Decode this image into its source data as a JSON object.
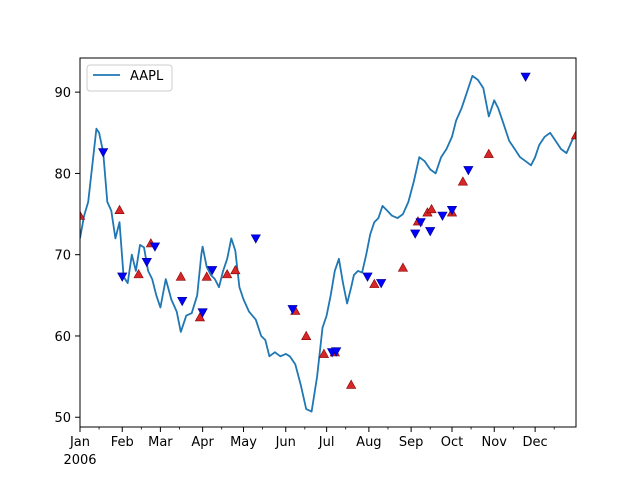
{
  "chart_data": {
    "type": "line",
    "title": "",
    "xlabel": "",
    "ylabel": "",
    "x_tick_labels": [
      "Jan",
      "Feb",
      "Mar",
      "Apr",
      "May",
      "Jun",
      "Jul",
      "Aug",
      "Sep",
      "Oct",
      "Nov",
      "Dec"
    ],
    "x_tick_sublabel": "2006",
    "y_ticks": [
      50,
      60,
      70,
      80,
      90
    ],
    "ylim": [
      48.8,
      94.2
    ],
    "xlim": [
      "2006-01-01",
      "2006-12-31"
    ],
    "legend": {
      "location": "upper-left",
      "entries": [
        "AAPL"
      ]
    },
    "grid": false,
    "colors": {
      "line": "#1f77b4",
      "up_marker": "#d62728",
      "down_marker": "#0000ff"
    },
    "series": [
      {
        "name": "AAPL",
        "x": [
          "2006-01-01",
          "2006-01-04",
          "2006-01-07",
          "2006-01-10",
          "2006-01-13",
          "2006-01-15",
          "2006-01-18",
          "2006-01-21",
          "2006-01-24",
          "2006-01-27",
          "2006-01-30",
          "2006-02-02",
          "2006-02-05",
          "2006-02-08",
          "2006-02-11",
          "2006-02-14",
          "2006-02-17",
          "2006-02-20",
          "2006-02-23",
          "2006-02-26",
          "2006-03-01",
          "2006-03-05",
          "2006-03-09",
          "2006-03-13",
          "2006-03-16",
          "2006-03-20",
          "2006-03-24",
          "2006-03-28",
          "2006-03-31",
          "2006-04-01",
          "2006-04-04",
          "2006-04-07",
          "2006-04-10",
          "2006-04-13",
          "2006-04-16",
          "2006-04-19",
          "2006-04-22",
          "2006-04-25",
          "2006-04-28",
          "2006-05-01",
          "2006-05-05",
          "2006-05-10",
          "2006-05-14",
          "2006-05-17",
          "2006-05-20",
          "2006-05-24",
          "2006-05-28",
          "2006-06-01",
          "2006-06-04",
          "2006-06-08",
          "2006-06-12",
          "2006-06-16",
          "2006-06-20",
          "2006-06-24",
          "2006-06-28",
          "2006-07-01",
          "2006-07-04",
          "2006-07-07",
          "2006-07-10",
          "2006-07-13",
          "2006-07-16",
          "2006-07-19",
          "2006-07-21",
          "2006-07-24",
          "2006-07-27",
          "2006-07-30",
          "2006-08-02",
          "2006-08-05",
          "2006-08-08",
          "2006-08-11",
          "2006-08-14",
          "2006-08-18",
          "2006-08-22",
          "2006-08-26",
          "2006-08-30",
          "2006-09-03",
          "2006-09-07",
          "2006-09-11",
          "2006-09-15",
          "2006-09-19",
          "2006-09-23",
          "2006-09-27",
          "2006-10-01",
          "2006-10-04",
          "2006-10-08",
          "2006-10-12",
          "2006-10-16",
          "2006-10-20",
          "2006-10-24",
          "2006-10-28",
          "2006-11-01",
          "2006-11-04",
          "2006-11-08",
          "2006-11-12",
          "2006-11-16",
          "2006-11-20",
          "2006-11-24",
          "2006-11-28",
          "2006-12-01",
          "2006-12-04",
          "2006-12-08",
          "2006-12-12",
          "2006-12-16",
          "2006-12-20",
          "2006-12-24",
          "2006-12-28",
          "2006-12-31"
        ],
        "values": [
          72.0,
          74.8,
          76.5,
          81.0,
          85.5,
          85.0,
          82.6,
          76.5,
          75.4,
          72.0,
          74.0,
          67.3,
          66.5,
          70.0,
          68.0,
          71.2,
          70.9,
          68.0,
          67.0,
          65.0,
          63.5,
          67.0,
          64.5,
          63.0,
          60.5,
          62.5,
          62.8,
          65.0,
          70.0,
          71.0,
          68.5,
          67.5,
          67.0,
          66.0,
          68.0,
          69.5,
          72.0,
          70.5,
          66.0,
          64.5,
          63.0,
          62.0,
          60.0,
          59.5,
          57.5,
          58.0,
          57.5,
          57.8,
          57.5,
          56.5,
          54.0,
          51.0,
          50.7,
          55.0,
          61.0,
          62.5,
          65.0,
          68.0,
          69.5,
          66.5,
          64.0,
          66.0,
          67.5,
          68.0,
          67.8,
          70.0,
          72.5,
          74.0,
          74.5,
          76.0,
          75.5,
          74.8,
          74.5,
          75.0,
          76.5,
          79.0,
          82.0,
          81.5,
          80.5,
          80.0,
          82.0,
          83.0,
          84.5,
          86.5,
          88.0,
          90.0,
          92.0,
          91.5,
          90.5,
          87.0,
          89.0,
          88.0,
          86.0,
          84.0,
          83.0,
          82.0,
          81.5,
          81.0,
          82.0,
          83.5,
          84.5,
          85.0,
          84.0,
          83.0,
          82.5,
          84.0,
          85.0
        ]
      }
    ],
    "up_markers": [
      {
        "x": "2006-01-01",
        "y": 74.8
      },
      {
        "x": "2006-01-30",
        "y": 75.5
      },
      {
        "x": "2006-02-13",
        "y": 67.6
      },
      {
        "x": "2006-02-22",
        "y": 71.4
      },
      {
        "x": "2006-03-16",
        "y": 67.3
      },
      {
        "x": "2006-03-30",
        "y": 62.3
      },
      {
        "x": "2006-04-04",
        "y": 67.3
      },
      {
        "x": "2006-04-19",
        "y": 67.6
      },
      {
        "x": "2006-04-25",
        "y": 68.1
      },
      {
        "x": "2006-06-08",
        "y": 63.1
      },
      {
        "x": "2006-06-16",
        "y": 60.0
      },
      {
        "x": "2006-06-29",
        "y": 57.8
      },
      {
        "x": "2006-07-07",
        "y": 58.0
      },
      {
        "x": "2006-07-19",
        "y": 54.0
      },
      {
        "x": "2006-08-05",
        "y": 66.4
      },
      {
        "x": "2006-08-26",
        "y": 68.4
      },
      {
        "x": "2006-09-06",
        "y": 74.1
      },
      {
        "x": "2006-09-13",
        "y": 75.2
      },
      {
        "x": "2006-09-16",
        "y": 75.6
      },
      {
        "x": "2006-10-01",
        "y": 75.2
      },
      {
        "x": "2006-10-09",
        "y": 79.0
      },
      {
        "x": "2006-10-28",
        "y": 82.4
      },
      {
        "x": "2006-12-31",
        "y": 84.7
      }
    ],
    "down_markers": [
      {
        "x": "2006-01-18",
        "y": 82.6
      },
      {
        "x": "2006-02-01",
        "y": 67.3
      },
      {
        "x": "2006-02-19",
        "y": 69.1
      },
      {
        "x": "2006-02-25",
        "y": 71.0
      },
      {
        "x": "2006-03-17",
        "y": 64.3
      },
      {
        "x": "2006-04-01",
        "y": 62.9
      },
      {
        "x": "2006-04-08",
        "y": 68.1
      },
      {
        "x": "2006-05-10",
        "y": 72.0
      },
      {
        "x": "2006-06-06",
        "y": 63.3
      },
      {
        "x": "2006-07-05",
        "y": 58.0
      },
      {
        "x": "2006-07-08",
        "y": 58.1
      },
      {
        "x": "2006-07-31",
        "y": 67.3
      },
      {
        "x": "2006-08-10",
        "y": 66.5
      },
      {
        "x": "2006-09-04",
        "y": 72.6
      },
      {
        "x": "2006-09-08",
        "y": 74.0
      },
      {
        "x": "2006-09-15",
        "y": 72.9
      },
      {
        "x": "2006-09-24",
        "y": 74.8
      },
      {
        "x": "2006-10-01",
        "y": 75.5
      },
      {
        "x": "2006-10-13",
        "y": 80.4
      },
      {
        "x": "2006-11-24",
        "y": 91.9
      }
    ]
  }
}
